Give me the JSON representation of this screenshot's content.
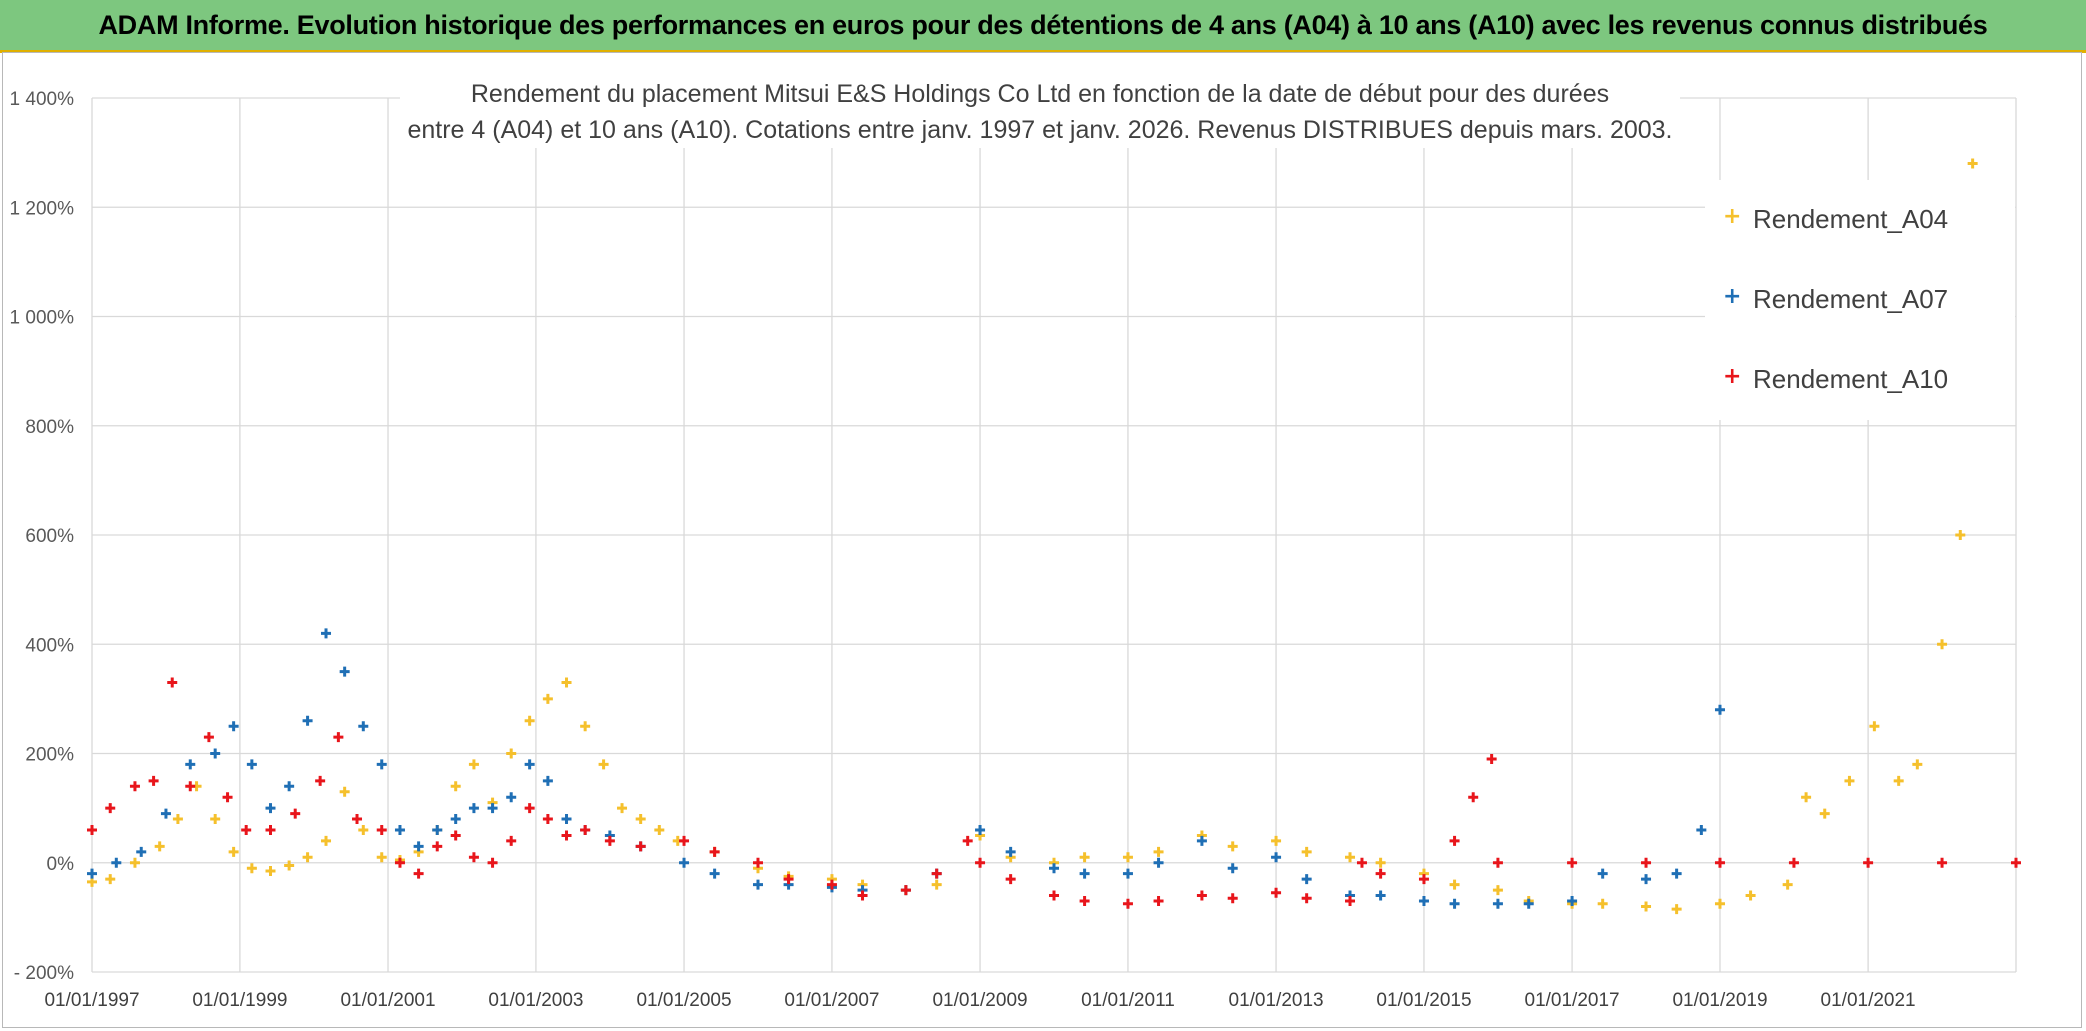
{
  "banner": {
    "title": "ADAM Informe. Evolution historique des performances en euros pour des détentions de 4 ans (A04) à 10 ans (A10) avec les revenus connus distribués"
  },
  "chart_data": {
    "type": "scatter",
    "title_line1": "Rendement du placement Mitsui E&S Holdings Co Ltd en fonction de la date de début pour des durées",
    "title_line2": "entre 4 (A04) et 10 ans (A10). Cotations entre janv. 1997 et janv. 2026. Revenus DISTRIBUES depuis mars. 2003.",
    "x_axis": {
      "type": "date",
      "range": [
        "1997-01-01",
        "2023-01-01"
      ],
      "tick_labels": [
        "01/01/1997",
        "01/01/1999",
        "01/01/2001",
        "01/01/2003",
        "01/01/2005",
        "01/01/2007",
        "01/01/2009",
        "01/01/2011",
        "01/01/2013",
        "01/01/2015",
        "01/01/2017",
        "01/01/2019",
        "01/01/2021"
      ]
    },
    "y_axis": {
      "unit": "percent",
      "range": [
        -200,
        1400
      ],
      "ticks": [
        -200,
        0,
        200,
        400,
        600,
        800,
        1000,
        1200,
        1400
      ],
      "tick_labels": [
        "- 200%",
        "0%",
        "200%",
        "400%",
        "600%",
        "800%",
        "1 000%",
        "1 200%",
        "1 400%"
      ]
    },
    "grid": true,
    "legend_position": "top-right",
    "series": [
      {
        "name": "Rendement_A04",
        "color": "#f5c02c",
        "points": [
          [
            "1997-01-01",
            -35
          ],
          [
            "1997-04-01",
            -30
          ],
          [
            "1997-08-01",
            0
          ],
          [
            "1997-12-01",
            30
          ],
          [
            "1998-03-01",
            80
          ],
          [
            "1998-06-01",
            140
          ],
          [
            "1998-09-01",
            80
          ],
          [
            "1998-12-01",
            20
          ],
          [
            "1999-03-01",
            -10
          ],
          [
            "1999-06-01",
            -15
          ],
          [
            "1999-09-01",
            -5
          ],
          [
            "1999-12-01",
            10
          ],
          [
            "2000-03-01",
            40
          ],
          [
            "2000-06-01",
            130
          ],
          [
            "2000-09-01",
            60
          ],
          [
            "2000-12-01",
            10
          ],
          [
            "2001-03-01",
            5
          ],
          [
            "2001-06-01",
            20
          ],
          [
            "2001-09-01",
            60
          ],
          [
            "2001-12-01",
            140
          ],
          [
            "2002-03-01",
            180
          ],
          [
            "2002-06-01",
            110
          ],
          [
            "2002-09-01",
            200
          ],
          [
            "2002-12-01",
            260
          ],
          [
            "2003-03-01",
            300
          ],
          [
            "2003-06-01",
            330
          ],
          [
            "2003-09-01",
            250
          ],
          [
            "2003-12-01",
            180
          ],
          [
            "2004-03-01",
            100
          ],
          [
            "2004-06-01",
            80
          ],
          [
            "2004-09-01",
            60
          ],
          [
            "2004-12-01",
            40
          ],
          [
            "2005-06-01",
            20
          ],
          [
            "2006-01-01",
            -10
          ],
          [
            "2006-06-01",
            -25
          ],
          [
            "2007-01-01",
            -30
          ],
          [
            "2007-06-01",
            -40
          ],
          [
            "2008-01-01",
            -50
          ],
          [
            "2008-06-01",
            -40
          ],
          [
            "2009-01-01",
            50
          ],
          [
            "2009-06-01",
            10
          ],
          [
            "2010-01-01",
            0
          ],
          [
            "2010-06-01",
            10
          ],
          [
            "2011-01-01",
            10
          ],
          [
            "2011-06-01",
            20
          ],
          [
            "2012-01-01",
            50
          ],
          [
            "2012-06-01",
            30
          ],
          [
            "2013-01-01",
            40
          ],
          [
            "2013-06-01",
            20
          ],
          [
            "2014-01-01",
            10
          ],
          [
            "2014-06-01",
            0
          ],
          [
            "2015-01-01",
            -20
          ],
          [
            "2015-06-01",
            -40
          ],
          [
            "2016-01-01",
            -50
          ],
          [
            "2016-06-01",
            -70
          ],
          [
            "2017-01-01",
            -75
          ],
          [
            "2017-06-01",
            -75
          ],
          [
            "2018-01-01",
            -80
          ],
          [
            "2018-06-01",
            -85
          ],
          [
            "2019-01-01",
            -75
          ],
          [
            "2019-06-01",
            -60
          ],
          [
            "2019-12-01",
            -40
          ],
          [
            "2020-03-01",
            120
          ],
          [
            "2020-06-01",
            90
          ],
          [
            "2020-10-01",
            150
          ],
          [
            "2021-02-01",
            250
          ],
          [
            "2021-06-01",
            150
          ],
          [
            "2021-09-01",
            180
          ],
          [
            "2022-01-01",
            400
          ],
          [
            "2022-04-01",
            600
          ],
          [
            "2022-06-01",
            1280
          ]
        ]
      },
      {
        "name": "Rendement_A07",
        "color": "#1f6fb5",
        "points": [
          [
            "1997-01-01",
            -20
          ],
          [
            "1997-05-01",
            0
          ],
          [
            "1997-09-01",
            20
          ],
          [
            "1998-01-01",
            90
          ],
          [
            "1998-05-01",
            180
          ],
          [
            "1998-09-01",
            200
          ],
          [
            "1998-12-01",
            250
          ],
          [
            "1999-03-01",
            180
          ],
          [
            "1999-06-01",
            100
          ],
          [
            "1999-09-01",
            140
          ],
          [
            "1999-12-01",
            260
          ],
          [
            "2000-03-01",
            420
          ],
          [
            "2000-06-01",
            350
          ],
          [
            "2000-09-01",
            250
          ],
          [
            "2000-12-01",
            180
          ],
          [
            "2001-03-01",
            60
          ],
          [
            "2001-06-01",
            30
          ],
          [
            "2001-09-01",
            60
          ],
          [
            "2001-12-01",
            80
          ],
          [
            "2002-03-01",
            100
          ],
          [
            "2002-06-01",
            100
          ],
          [
            "2002-09-01",
            120
          ],
          [
            "2002-12-01",
            180
          ],
          [
            "2003-03-01",
            150
          ],
          [
            "2003-06-01",
            80
          ],
          [
            "2003-09-01",
            60
          ],
          [
            "2004-01-01",
            50
          ],
          [
            "2004-06-01",
            30
          ],
          [
            "2005-01-01",
            0
          ],
          [
            "2005-06-01",
            -20
          ],
          [
            "2006-01-01",
            -40
          ],
          [
            "2006-06-01",
            -40
          ],
          [
            "2007-01-01",
            -45
          ],
          [
            "2007-06-01",
            -50
          ],
          [
            "2008-01-01",
            -50
          ],
          [
            "2008-06-01",
            -20
          ],
          [
            "2009-01-01",
            60
          ],
          [
            "2009-06-01",
            20
          ],
          [
            "2010-01-01",
            -10
          ],
          [
            "2010-06-01",
            -20
          ],
          [
            "2011-01-01",
            -20
          ],
          [
            "2011-06-01",
            0
          ],
          [
            "2012-01-01",
            40
          ],
          [
            "2012-06-01",
            -10
          ],
          [
            "2013-01-01",
            10
          ],
          [
            "2013-06-01",
            -30
          ],
          [
            "2014-01-01",
            -60
          ],
          [
            "2014-06-01",
            -60
          ],
          [
            "2015-01-01",
            -70
          ],
          [
            "2015-06-01",
            -75
          ],
          [
            "2016-01-01",
            -75
          ],
          [
            "2016-06-01",
            -75
          ],
          [
            "2017-01-01",
            -70
          ],
          [
            "2017-06-01",
            -20
          ],
          [
            "2018-01-01",
            -30
          ],
          [
            "2018-06-01",
            -20
          ],
          [
            "2018-10-01",
            60
          ],
          [
            "2019-01-01",
            280
          ]
        ]
      },
      {
        "name": "Rendement_A10",
        "color": "#e8151b",
        "points": [
          [
            "1997-01-01",
            60
          ],
          [
            "1997-04-01",
            100
          ],
          [
            "1997-08-01",
            140
          ],
          [
            "1997-11-01",
            150
          ],
          [
            "1998-02-01",
            330
          ],
          [
            "1998-05-01",
            140
          ],
          [
            "1998-08-01",
            230
          ],
          [
            "1998-11-01",
            120
          ],
          [
            "1999-02-01",
            60
          ],
          [
            "1999-06-01",
            60
          ],
          [
            "1999-10-01",
            90
          ],
          [
            "2000-02-01",
            150
          ],
          [
            "2000-05-01",
            230
          ],
          [
            "2000-08-01",
            80
          ],
          [
            "2000-12-01",
            60
          ],
          [
            "2001-03-01",
            0
          ],
          [
            "2001-06-01",
            -20
          ],
          [
            "2001-09-01",
            30
          ],
          [
            "2001-12-01",
            50
          ],
          [
            "2002-03-01",
            10
          ],
          [
            "2002-06-01",
            0
          ],
          [
            "2002-09-01",
            40
          ],
          [
            "2002-12-01",
            100
          ],
          [
            "2003-03-01",
            80
          ],
          [
            "2003-06-01",
            50
          ],
          [
            "2003-09-01",
            60
          ],
          [
            "2004-01-01",
            40
          ],
          [
            "2004-06-01",
            30
          ],
          [
            "2005-01-01",
            40
          ],
          [
            "2005-06-01",
            20
          ],
          [
            "2006-01-01",
            0
          ],
          [
            "2006-06-01",
            -30
          ],
          [
            "2007-01-01",
            -40
          ],
          [
            "2007-06-01",
            -60
          ],
          [
            "2008-01-01",
            -50
          ],
          [
            "2008-06-01",
            -20
          ],
          [
            "2008-11-01",
            40
          ],
          [
            "2009-01-01",
            0
          ],
          [
            "2009-06-01",
            -30
          ],
          [
            "2010-01-01",
            -60
          ],
          [
            "2010-06-01",
            -70
          ],
          [
            "2011-01-01",
            -75
          ],
          [
            "2011-06-01",
            -70
          ],
          [
            "2012-01-01",
            -60
          ],
          [
            "2012-06-01",
            -65
          ],
          [
            "2013-01-01",
            -55
          ],
          [
            "2013-06-01",
            -65
          ],
          [
            "2014-01-01",
            -70
          ],
          [
            "2014-03-01",
            0
          ],
          [
            "2014-06-01",
            -20
          ],
          [
            "2015-01-01",
            -30
          ],
          [
            "2015-06-01",
            40
          ],
          [
            "2015-09-01",
            120
          ],
          [
            "2015-12-01",
            190
          ],
          [
            "2016-01-01",
            0
          ],
          [
            "2017-01-01",
            0
          ],
          [
            "2018-01-01",
            0
          ],
          [
            "2019-01-01",
            0
          ],
          [
            "2020-01-01",
            0
          ],
          [
            "2021-01-01",
            0
          ],
          [
            "2022-01-01",
            0
          ],
          [
            "2023-01-01",
            0
          ]
        ]
      }
    ]
  }
}
